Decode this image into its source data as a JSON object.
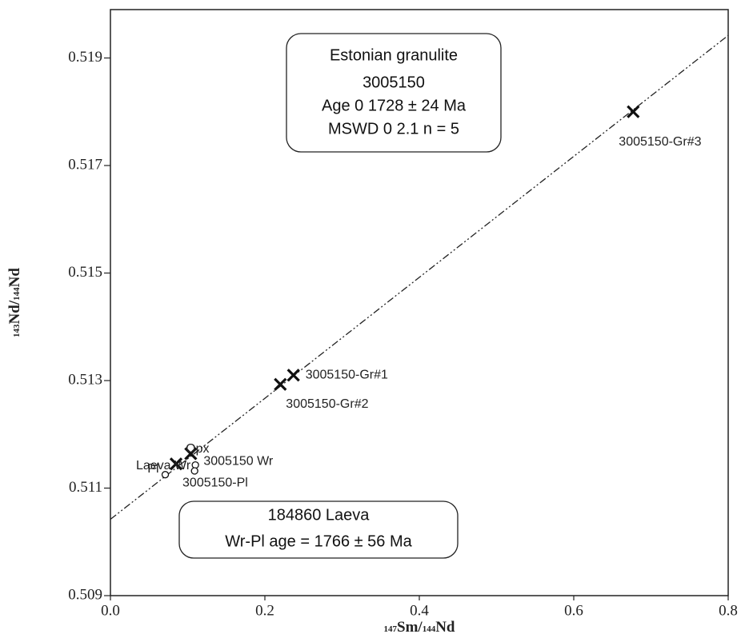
{
  "chart_data": {
    "type": "scatter",
    "x_label": [
      "147",
      "Sm/",
      "144",
      "Nd"
    ],
    "y_label": [
      "143",
      "Nd/",
      "144",
      "Nd"
    ],
    "xlim": [
      0,
      0.8
    ],
    "ylim": [
      0.509,
      0.5199
    ],
    "xticks": [
      {
        "value": 0,
        "label": "0.0"
      },
      0.2,
      0.4,
      0.6,
      0.8
    ],
    "yticks": [
      0.509,
      0.511,
      0.513,
      0.515,
      0.517,
      0.519
    ],
    "points": [
      {
        "label": "3005150-Gr#3",
        "x": 0.677,
        "y": 0.518,
        "marker": "x"
      },
      {
        "label": "3005150-Gr#1",
        "x": 0.237,
        "y": 0.5131,
        "marker": "x"
      },
      {
        "label": "3005150-Gr#2",
        "x": 0.22,
        "y": 0.51293,
        "marker": "x"
      },
      {
        "label": "3005150 Wr",
        "x": 0.104,
        "y": 0.51164,
        "marker": "x"
      },
      {
        "label": "3005150-Pl",
        "x": 0.085,
        "y": 0.51145,
        "marker": "x"
      },
      {
        "label": "Opx",
        "x": 0.11,
        "y": 0.51143,
        "marker": "o"
      },
      {
        "label": "Laeva Wr",
        "x": 0.109,
        "y": 0.51132,
        "marker": "o"
      },
      {
        "label": "Pl",
        "x": 0.071,
        "y": 0.51125,
        "marker": "o"
      }
    ],
    "fit_line": {
      "x": [
        0,
        0.8
      ],
      "y": [
        0.51042,
        0.51942
      ]
    },
    "annotations": [
      [
        "Estonian granulite",
        "3005150",
        "Age 0 1728  ± 24 Ma",
        "MSWD 0 2.1 n = 5"
      ],
      [
        "184860 Laeva",
        "Wr-Pl age = 1766 ±  56 Ma"
      ]
    ]
  }
}
